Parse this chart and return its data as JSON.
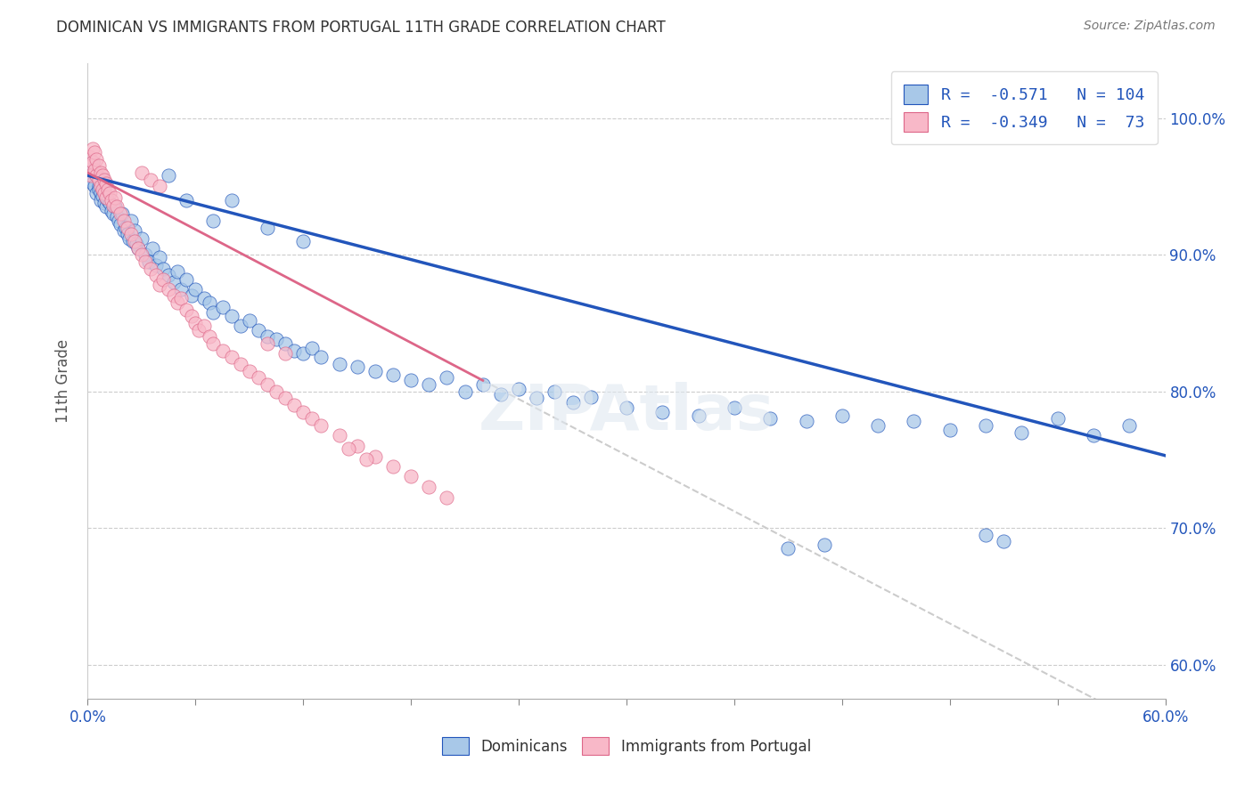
{
  "title": "DOMINICAN VS IMMIGRANTS FROM PORTUGAL 11TH GRADE CORRELATION CHART",
  "source": "Source: ZipAtlas.com",
  "ylabel": "11th Grade",
  "ytick_labels": [
    "100.0%",
    "90.0%",
    "80.0%",
    "70.0%",
    "60.0%"
  ],
  "ytick_values": [
    1.0,
    0.9,
    0.8,
    0.7,
    0.6
  ],
  "xlim": [
    0.0,
    0.6
  ],
  "ylim": [
    0.575,
    1.04
  ],
  "legend1_label": "R =  -0.571   N = 104",
  "legend2_label": "R =  -0.349   N =  73",
  "legend_bottom1": "Dominicans",
  "legend_bottom2": "Immigrants from Portugal",
  "blue_color": "#a8c8e8",
  "pink_color": "#f8b8c8",
  "line_blue": "#2255bb",
  "line_pink": "#dd6688",
  "line_dashed_color": "#cccccc",
  "blue_scatter": [
    [
      0.001,
      0.96
    ],
    [
      0.002,
      0.958
    ],
    [
      0.002,
      0.955
    ],
    [
      0.003,
      0.968
    ],
    [
      0.003,
      0.952
    ],
    [
      0.004,
      0.962
    ],
    [
      0.004,
      0.95
    ],
    [
      0.005,
      0.958
    ],
    [
      0.005,
      0.945
    ],
    [
      0.006,
      0.95
    ],
    [
      0.006,
      0.948
    ],
    [
      0.007,
      0.945
    ],
    [
      0.007,
      0.94
    ],
    [
      0.008,
      0.955
    ],
    [
      0.008,
      0.943
    ],
    [
      0.009,
      0.948
    ],
    [
      0.009,
      0.938
    ],
    [
      0.01,
      0.942
    ],
    [
      0.01,
      0.935
    ],
    [
      0.011,
      0.94
    ],
    [
      0.012,
      0.938
    ],
    [
      0.013,
      0.932
    ],
    [
      0.014,
      0.93
    ],
    [
      0.015,
      0.935
    ],
    [
      0.016,
      0.928
    ],
    [
      0.017,
      0.925
    ],
    [
      0.018,
      0.922
    ],
    [
      0.019,
      0.93
    ],
    [
      0.02,
      0.918
    ],
    [
      0.021,
      0.92
    ],
    [
      0.022,
      0.915
    ],
    [
      0.023,
      0.912
    ],
    [
      0.024,
      0.925
    ],
    [
      0.025,
      0.91
    ],
    [
      0.026,
      0.918
    ],
    [
      0.027,
      0.908
    ],
    [
      0.028,
      0.905
    ],
    [
      0.03,
      0.912
    ],
    [
      0.032,
      0.9
    ],
    [
      0.034,
      0.895
    ],
    [
      0.036,
      0.905
    ],
    [
      0.038,
      0.892
    ],
    [
      0.04,
      0.898
    ],
    [
      0.042,
      0.89
    ],
    [
      0.045,
      0.885
    ],
    [
      0.048,
      0.88
    ],
    [
      0.05,
      0.888
    ],
    [
      0.052,
      0.875
    ],
    [
      0.055,
      0.882
    ],
    [
      0.058,
      0.87
    ],
    [
      0.06,
      0.875
    ],
    [
      0.065,
      0.868
    ],
    [
      0.068,
      0.865
    ],
    [
      0.07,
      0.858
    ],
    [
      0.075,
      0.862
    ],
    [
      0.08,
      0.855
    ],
    [
      0.085,
      0.848
    ],
    [
      0.09,
      0.852
    ],
    [
      0.095,
      0.845
    ],
    [
      0.1,
      0.84
    ],
    [
      0.105,
      0.838
    ],
    [
      0.11,
      0.835
    ],
    [
      0.115,
      0.83
    ],
    [
      0.12,
      0.828
    ],
    [
      0.125,
      0.832
    ],
    [
      0.13,
      0.825
    ],
    [
      0.14,
      0.82
    ],
    [
      0.15,
      0.818
    ],
    [
      0.16,
      0.815
    ],
    [
      0.17,
      0.812
    ],
    [
      0.18,
      0.808
    ],
    [
      0.19,
      0.805
    ],
    [
      0.2,
      0.81
    ],
    [
      0.21,
      0.8
    ],
    [
      0.22,
      0.805
    ],
    [
      0.23,
      0.798
    ],
    [
      0.24,
      0.802
    ],
    [
      0.25,
      0.795
    ],
    [
      0.26,
      0.8
    ],
    [
      0.27,
      0.792
    ],
    [
      0.28,
      0.796
    ],
    [
      0.3,
      0.788
    ],
    [
      0.32,
      0.785
    ],
    [
      0.34,
      0.782
    ],
    [
      0.36,
      0.788
    ],
    [
      0.38,
      0.78
    ],
    [
      0.4,
      0.778
    ],
    [
      0.42,
      0.782
    ],
    [
      0.44,
      0.775
    ],
    [
      0.46,
      0.778
    ],
    [
      0.48,
      0.772
    ],
    [
      0.5,
      0.775
    ],
    [
      0.52,
      0.77
    ],
    [
      0.54,
      0.78
    ],
    [
      0.56,
      0.768
    ],
    [
      0.58,
      0.775
    ],
    [
      0.045,
      0.958
    ],
    [
      0.055,
      0.94
    ],
    [
      0.07,
      0.925
    ],
    [
      0.08,
      0.94
    ],
    [
      0.1,
      0.92
    ],
    [
      0.12,
      0.91
    ],
    [
      0.39,
      0.685
    ],
    [
      0.41,
      0.688
    ],
    [
      0.5,
      0.695
    ],
    [
      0.51,
      0.69
    ]
  ],
  "pink_scatter": [
    [
      0.001,
      0.972
    ],
    [
      0.002,
      0.965
    ],
    [
      0.002,
      0.958
    ],
    [
      0.003,
      0.978
    ],
    [
      0.003,
      0.968
    ],
    [
      0.004,
      0.975
    ],
    [
      0.004,
      0.962
    ],
    [
      0.005,
      0.97
    ],
    [
      0.005,
      0.958
    ],
    [
      0.006,
      0.965
    ],
    [
      0.006,
      0.955
    ],
    [
      0.007,
      0.96
    ],
    [
      0.007,
      0.95
    ],
    [
      0.008,
      0.958
    ],
    [
      0.008,
      0.948
    ],
    [
      0.009,
      0.955
    ],
    [
      0.009,
      0.945
    ],
    [
      0.01,
      0.952
    ],
    [
      0.01,
      0.942
    ],
    [
      0.011,
      0.948
    ],
    [
      0.012,
      0.945
    ],
    [
      0.013,
      0.94
    ],
    [
      0.014,
      0.936
    ],
    [
      0.015,
      0.942
    ],
    [
      0.016,
      0.935
    ],
    [
      0.018,
      0.93
    ],
    [
      0.02,
      0.925
    ],
    [
      0.022,
      0.92
    ],
    [
      0.024,
      0.915
    ],
    [
      0.026,
      0.91
    ],
    [
      0.028,
      0.905
    ],
    [
      0.03,
      0.9
    ],
    [
      0.032,
      0.895
    ],
    [
      0.035,
      0.89
    ],
    [
      0.038,
      0.885
    ],
    [
      0.04,
      0.878
    ],
    [
      0.042,
      0.882
    ],
    [
      0.045,
      0.875
    ],
    [
      0.048,
      0.87
    ],
    [
      0.05,
      0.865
    ],
    [
      0.052,
      0.868
    ],
    [
      0.055,
      0.86
    ],
    [
      0.058,
      0.855
    ],
    [
      0.06,
      0.85
    ],
    [
      0.062,
      0.845
    ],
    [
      0.065,
      0.848
    ],
    [
      0.068,
      0.84
    ],
    [
      0.07,
      0.835
    ],
    [
      0.075,
      0.83
    ],
    [
      0.08,
      0.825
    ],
    [
      0.085,
      0.82
    ],
    [
      0.09,
      0.815
    ],
    [
      0.095,
      0.81
    ],
    [
      0.1,
      0.805
    ],
    [
      0.105,
      0.8
    ],
    [
      0.11,
      0.795
    ],
    [
      0.115,
      0.79
    ],
    [
      0.12,
      0.785
    ],
    [
      0.125,
      0.78
    ],
    [
      0.13,
      0.775
    ],
    [
      0.14,
      0.768
    ],
    [
      0.15,
      0.76
    ],
    [
      0.16,
      0.752
    ],
    [
      0.17,
      0.745
    ],
    [
      0.18,
      0.738
    ],
    [
      0.19,
      0.73
    ],
    [
      0.2,
      0.722
    ],
    [
      0.03,
      0.96
    ],
    [
      0.035,
      0.955
    ],
    [
      0.04,
      0.95
    ],
    [
      0.1,
      0.835
    ],
    [
      0.11,
      0.828
    ],
    [
      0.145,
      0.758
    ],
    [
      0.155,
      0.75
    ]
  ],
  "blue_line_x": [
    0.0,
    0.6
  ],
  "blue_line_y": [
    0.958,
    0.753
  ],
  "pink_line_x": [
    0.0,
    0.22
  ],
  "pink_line_y": [
    0.96,
    0.808
  ],
  "dashed_line_x": [
    0.22,
    0.6
  ],
  "dashed_line_y": [
    0.808,
    0.548
  ],
  "xtick_positions": [
    0.0,
    0.06,
    0.12,
    0.18,
    0.24,
    0.3,
    0.36,
    0.42,
    0.48,
    0.54,
    0.6
  ],
  "xtick_show_labels": [
    true,
    false,
    false,
    false,
    false,
    false,
    false,
    false,
    false,
    false,
    true
  ]
}
